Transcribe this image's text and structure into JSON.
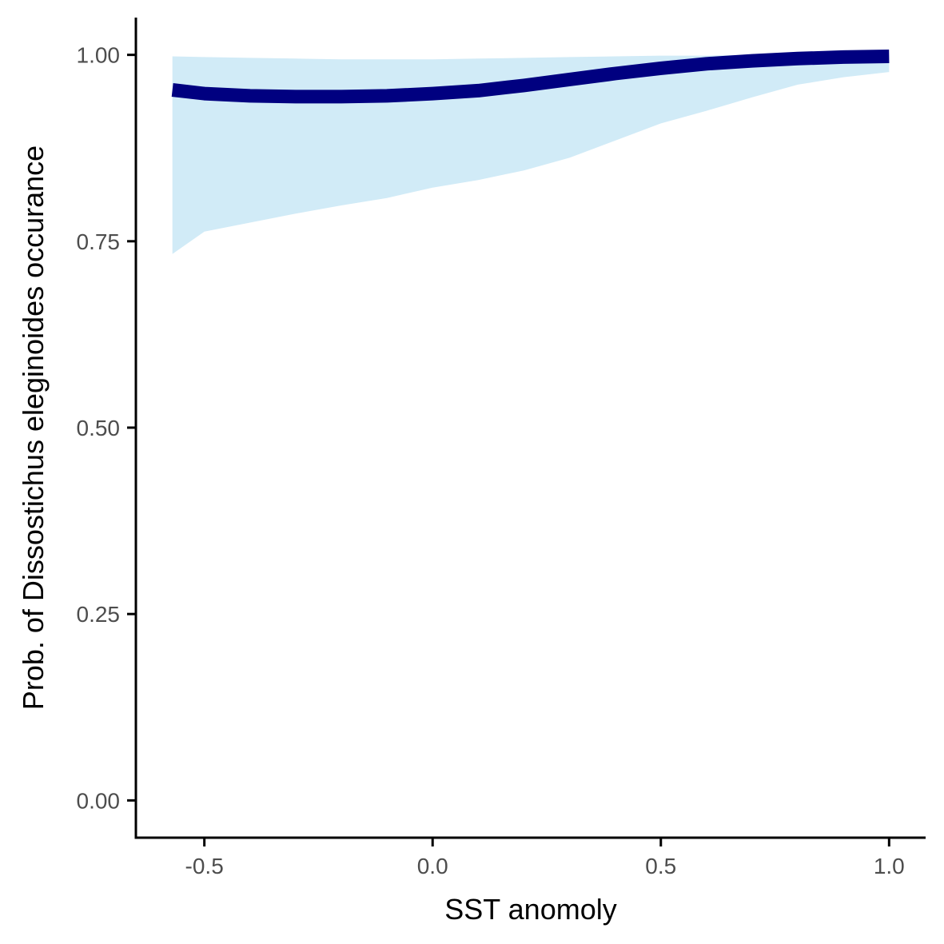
{
  "chart_data": {
    "type": "line",
    "title": "",
    "xlabel": "SST anomoly",
    "ylabel": "Prob. of  Dissostichus eleginoides  occurance",
    "xlim": [
      -0.65,
      1.08
    ],
    "ylim": [
      -0.05,
      1.05
    ],
    "x_ticks": [
      -0.5,
      0.0,
      0.5,
      1.0
    ],
    "x_tick_labels": [
      "-0.5",
      "0.0",
      "0.5",
      "1.0"
    ],
    "y_ticks": [
      0.0,
      0.25,
      0.5,
      0.75,
      1.0
    ],
    "y_tick_labels": [
      "0.00",
      "0.25",
      "0.50",
      "0.75",
      "1.00"
    ],
    "grid": false,
    "legend": "none",
    "colors": {
      "line": "#000080",
      "band": "#d1ebf7",
      "axis": "#000000",
      "tick_text": "#4d4d4d"
    },
    "series": [
      {
        "x": [
          -0.57,
          -0.5,
          -0.4,
          -0.3,
          -0.2,
          -0.1,
          0.0,
          0.1,
          0.2,
          0.3,
          0.4,
          0.5,
          0.6,
          0.7,
          0.8,
          0.9,
          1.0
        ],
        "values": [
          0.953,
          0.948,
          0.945,
          0.944,
          0.944,
          0.945,
          0.948,
          0.952,
          0.959,
          0.967,
          0.975,
          0.982,
          0.988,
          0.992,
          0.995,
          0.997,
          0.998
        ],
        "lower": [
          0.733,
          0.763,
          0.775,
          0.787,
          0.798,
          0.808,
          0.822,
          0.832,
          0.845,
          0.862,
          0.885,
          0.908,
          0.925,
          0.943,
          0.96,
          0.97,
          0.977
        ],
        "upper": [
          0.998,
          0.997,
          0.996,
          0.995,
          0.994,
          0.994,
          0.994,
          0.995,
          0.996,
          0.997,
          0.998,
          0.999,
          0.999,
          1.0,
          1.0,
          1.0,
          1.0
        ]
      }
    ]
  }
}
